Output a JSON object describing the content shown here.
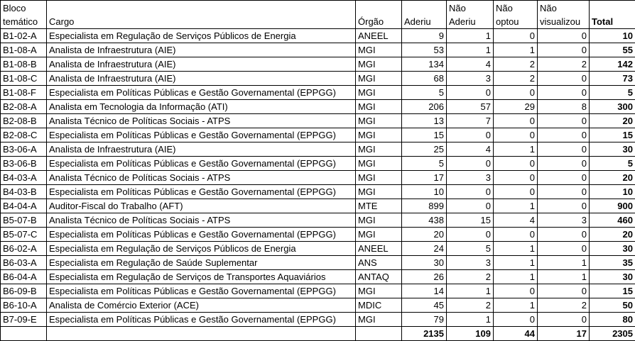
{
  "header": {
    "bloco": "Bloco temático",
    "cargo": "Cargo",
    "orgao": "Órgão",
    "aderiu": "Aderiu",
    "nao_aderiu": "Não Aderiu",
    "nao_optou": "Não optou",
    "nao_visualizou": "Não visualizou",
    "total": "Total"
  },
  "rows": [
    {
      "bloco": "B1-02-A",
      "cargo": "Especialista em Regulação de Serviços Públicos de Energia",
      "orgao": "ANEEL",
      "aderiu": 9,
      "nao_aderiu": 1,
      "nao_optou": 0,
      "nao_visualizou": 0,
      "total": 10
    },
    {
      "bloco": "B1-08-A",
      "cargo": "Analista de Infraestrutura (AIE)",
      "orgao": "MGI",
      "aderiu": 53,
      "nao_aderiu": 1,
      "nao_optou": 1,
      "nao_visualizou": 0,
      "total": 55
    },
    {
      "bloco": "B1-08-B",
      "cargo": "Analista de Infraestrutura (AIE)",
      "orgao": "MGI",
      "aderiu": 134,
      "nao_aderiu": 4,
      "nao_optou": 2,
      "nao_visualizou": 2,
      "total": 142
    },
    {
      "bloco": "B1-08-C",
      "cargo": "Analista de Infraestrutura (AIE)",
      "orgao": "MGI",
      "aderiu": 68,
      "nao_aderiu": 3,
      "nao_optou": 2,
      "nao_visualizou": 0,
      "total": 73
    },
    {
      "bloco": "B1-08-F",
      "cargo": "Especialista em Políticas Públicas e Gestão Governamental (EPPGG)",
      "orgao": "MGI",
      "aderiu": 5,
      "nao_aderiu": 0,
      "nao_optou": 0,
      "nao_visualizou": 0,
      "total": 5
    },
    {
      "bloco": "B2-08-A",
      "cargo": "Analista em Tecnologia da Informação (ATI)",
      "orgao": "MGI",
      "aderiu": 206,
      "nao_aderiu": 57,
      "nao_optou": 29,
      "nao_visualizou": 8,
      "total": 300
    },
    {
      "bloco": "B2-08-B",
      "cargo": "Analista Técnico de Políticas Sociais - ATPS",
      "orgao": "MGI",
      "aderiu": 13,
      "nao_aderiu": 7,
      "nao_optou": 0,
      "nao_visualizou": 0,
      "total": 20
    },
    {
      "bloco": "B2-08-C",
      "cargo": "Especialista em Políticas Públicas e Gestão Governamental (EPPGG)",
      "orgao": "MGI",
      "aderiu": 15,
      "nao_aderiu": 0,
      "nao_optou": 0,
      "nao_visualizou": 0,
      "total": 15
    },
    {
      "bloco": "B3-06-A",
      "cargo": "Analista de Infraestrutura (AIE)",
      "orgao": "MGI",
      "aderiu": 25,
      "nao_aderiu": 4,
      "nao_optou": 1,
      "nao_visualizou": 0,
      "total": 30
    },
    {
      "bloco": "B3-06-B",
      "cargo": "Especialista em Políticas Públicas e Gestão Governamental (EPPGG)",
      "orgao": "MGI",
      "aderiu": 5,
      "nao_aderiu": 0,
      "nao_optou": 0,
      "nao_visualizou": 0,
      "total": 5
    },
    {
      "bloco": "B4-03-A",
      "cargo": "Analista Técnico de Políticas Sociais - ATPS",
      "orgao": "MGI",
      "aderiu": 17,
      "nao_aderiu": 3,
      "nao_optou": 0,
      "nao_visualizou": 0,
      "total": 20
    },
    {
      "bloco": "B4-03-B",
      "cargo": "Especialista em Políticas Públicas e Gestão Governamental (EPPGG)",
      "orgao": "MGI",
      "aderiu": 10,
      "nao_aderiu": 0,
      "nao_optou": 0,
      "nao_visualizou": 0,
      "total": 10
    },
    {
      "bloco": "B4-04-A",
      "cargo": "Auditor-Fiscal do Trabalho (AFT)",
      "orgao": "MTE",
      "aderiu": 899,
      "nao_aderiu": 0,
      "nao_optou": 1,
      "nao_visualizou": 0,
      "total": 900
    },
    {
      "bloco": "B5-07-B",
      "cargo": "Analista Técnico de Políticas Sociais - ATPS",
      "orgao": "MGI",
      "aderiu": 438,
      "nao_aderiu": 15,
      "nao_optou": 4,
      "nao_visualizou": 3,
      "total": 460
    },
    {
      "bloco": "B5-07-C",
      "cargo": "Especialista em Políticas Públicas e Gestão Governamental (EPPGG)",
      "orgao": "MGI",
      "aderiu": 20,
      "nao_aderiu": 0,
      "nao_optou": 0,
      "nao_visualizou": 0,
      "total": 20
    },
    {
      "bloco": "B6-02-A",
      "cargo": "Especialista em Regulação de Serviços Públicos de Energia",
      "orgao": "ANEEL",
      "aderiu": 24,
      "nao_aderiu": 5,
      "nao_optou": 1,
      "nao_visualizou": 0,
      "total": 30
    },
    {
      "bloco": "B6-03-A",
      "cargo": "Especialista em Regulação de Saúde Suplementar",
      "orgao": "ANS",
      "aderiu": 30,
      "nao_aderiu": 3,
      "nao_optou": 1,
      "nao_visualizou": 1,
      "total": 35
    },
    {
      "bloco": "B6-04-A",
      "cargo": "Especialista em Regulação de Serviços de Transportes Aquaviários",
      "orgao": "ANTAQ",
      "aderiu": 26,
      "nao_aderiu": 2,
      "nao_optou": 1,
      "nao_visualizou": 1,
      "total": 30
    },
    {
      "bloco": "B6-09-B",
      "cargo": "Especialista em Políticas Públicas e Gestão Governamental (EPPGG)",
      "orgao": "MGI",
      "aderiu": 14,
      "nao_aderiu": 1,
      "nao_optou": 0,
      "nao_visualizou": 0,
      "total": 15
    },
    {
      "bloco": "B6-10-A",
      "cargo": "Analista de Comércio Exterior (ACE)",
      "orgao": "MDIC",
      "aderiu": 45,
      "nao_aderiu": 2,
      "nao_optou": 1,
      "nao_visualizou": 2,
      "total": 50
    },
    {
      "bloco": "B7-09-E",
      "cargo": "Especialista em Políticas Públicas e Gestão Governamental (EPPGG)",
      "orgao": "MGI",
      "aderiu": 79,
      "nao_aderiu": 1,
      "nao_optou": 0,
      "nao_visualizou": 0,
      "total": 80
    }
  ],
  "totals": {
    "aderiu": 2135,
    "nao_aderiu": 109,
    "nao_optou": 44,
    "nao_visualizou": 17,
    "total": 2305
  },
  "colors": {
    "grid": "#000000",
    "text": "#000000",
    "background": "#ffffff"
  }
}
